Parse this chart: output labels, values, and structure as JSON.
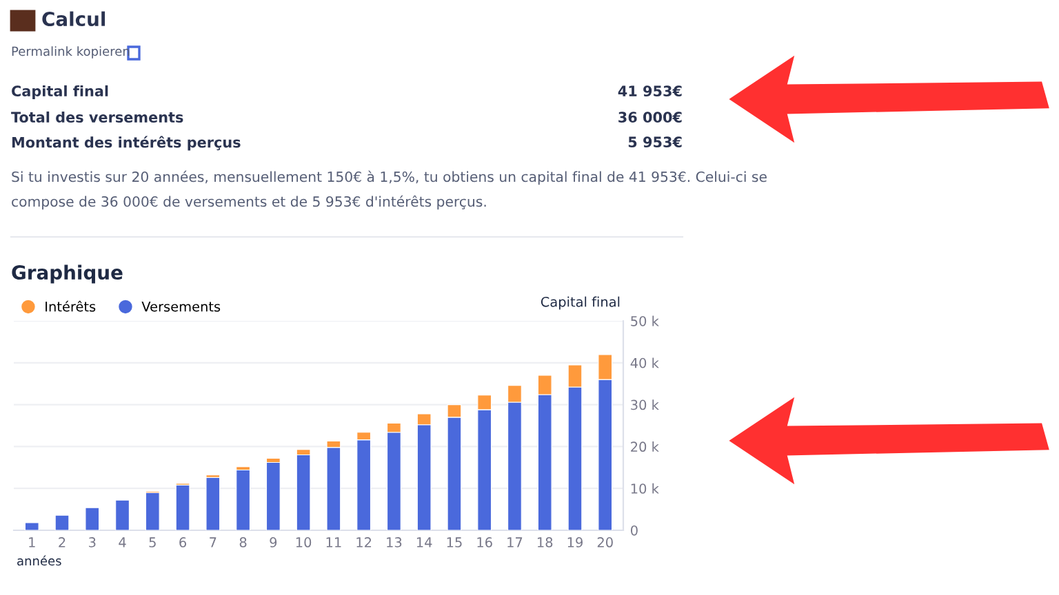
{
  "chart_data": {
    "type": "bar",
    "title": "Graphique",
    "xlabel": "années",
    "ylabel": "Capital final",
    "categories": [
      "1",
      "2",
      "3",
      "4",
      "5",
      "6",
      "7",
      "8",
      "9",
      "10",
      "11",
      "12",
      "13",
      "14",
      "15",
      "16",
      "17",
      "18",
      "19",
      "20"
    ],
    "stacked": true,
    "series": [
      {
        "name": "Versements",
        "color": "#4a69dc",
        "values": [
          1800,
          3600,
          5400,
          7200,
          9000,
          10800,
          12600,
          14400,
          16200,
          18000,
          19800,
          21600,
          23400,
          25200,
          27000,
          28800,
          30600,
          32400,
          34200,
          36000
        ]
      },
      {
        "name": "Intérêts",
        "color": "#ff9a3c",
        "values": [
          null,
          null,
          null,
          null,
          300,
          400,
          600,
          800,
          1000,
          1300,
          1500,
          1800,
          2200,
          2600,
          3000,
          3500,
          4000,
          4600,
          5300,
          5953
        ]
      }
    ],
    "ylim": [
      0,
      50000
    ],
    "yticks": [
      {
        "value": 0,
        "label": "0"
      },
      {
        "value": 10000,
        "label": "10 k"
      },
      {
        "value": 20000,
        "label": "20 k"
      },
      {
        "value": 30000,
        "label": "30 k"
      },
      {
        "value": 40000,
        "label": "40 k"
      },
      {
        "value": 50000,
        "label": "50 k"
      }
    ],
    "grid": "y",
    "legend": "top left",
    "annotations": [
      "Calcul",
      "Permalink kopieren",
      "Capital final",
      "41 953€",
      "Total des versements",
      "36 000€",
      "Montant des intérêts perçus",
      "5 953€",
      "Si tu investis sur 20 années, mensuellement 150€ à 1,5%, tu obtiens un capital final de 41 953€. Celui-ci se",
      "compose de 36 000€ de versements et de 5 953€ d'intérêts perçus."
    ]
  }
}
